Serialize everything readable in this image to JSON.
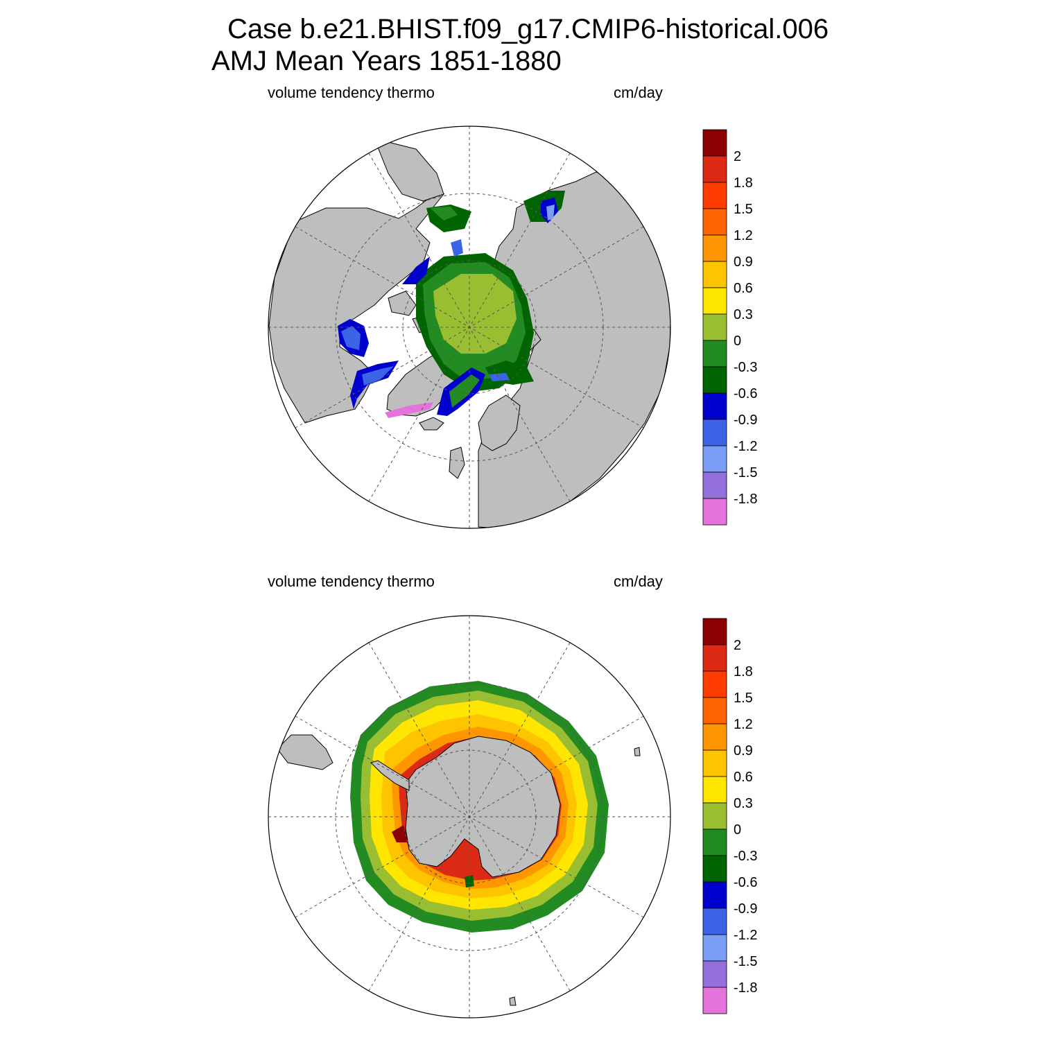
{
  "header": {
    "title_line1": "Case b.e21.BHIST.f09_g17.CMIP6-historical.006",
    "title_line2": "AMJ Mean   Years 1851-1880"
  },
  "panels": [
    {
      "id": "north",
      "hemisphere": "Northern",
      "left_label": "volume tendency thermo",
      "right_label": "cm/day"
    },
    {
      "id": "south",
      "hemisphere": "Southern",
      "left_label": "volume tendency thermo",
      "right_label": "cm/day"
    }
  ],
  "colorbar": {
    "labels": [
      "2",
      "1.8",
      "1.5",
      "1.2",
      "0.9",
      "0.6",
      "0.3",
      "0",
      "-0.3",
      "-0.6",
      "-0.9",
      "-1.2",
      "-1.5",
      "-1.8"
    ],
    "colors": [
      "#8b0000",
      "#dc2a14",
      "#ff3c00",
      "#ff6400",
      "#ff9600",
      "#ffc400",
      "#ffe600",
      "#9abe32",
      "#228b22",
      "#006400",
      "#0000cd",
      "#3c64e6",
      "#7b9cf5",
      "#9370db",
      "#e573dc"
    ]
  },
  "map_colors": {
    "land": "#bebebe",
    "ocean": "#ffffff",
    "coast": "#000000",
    "grid": "#555555"
  }
}
